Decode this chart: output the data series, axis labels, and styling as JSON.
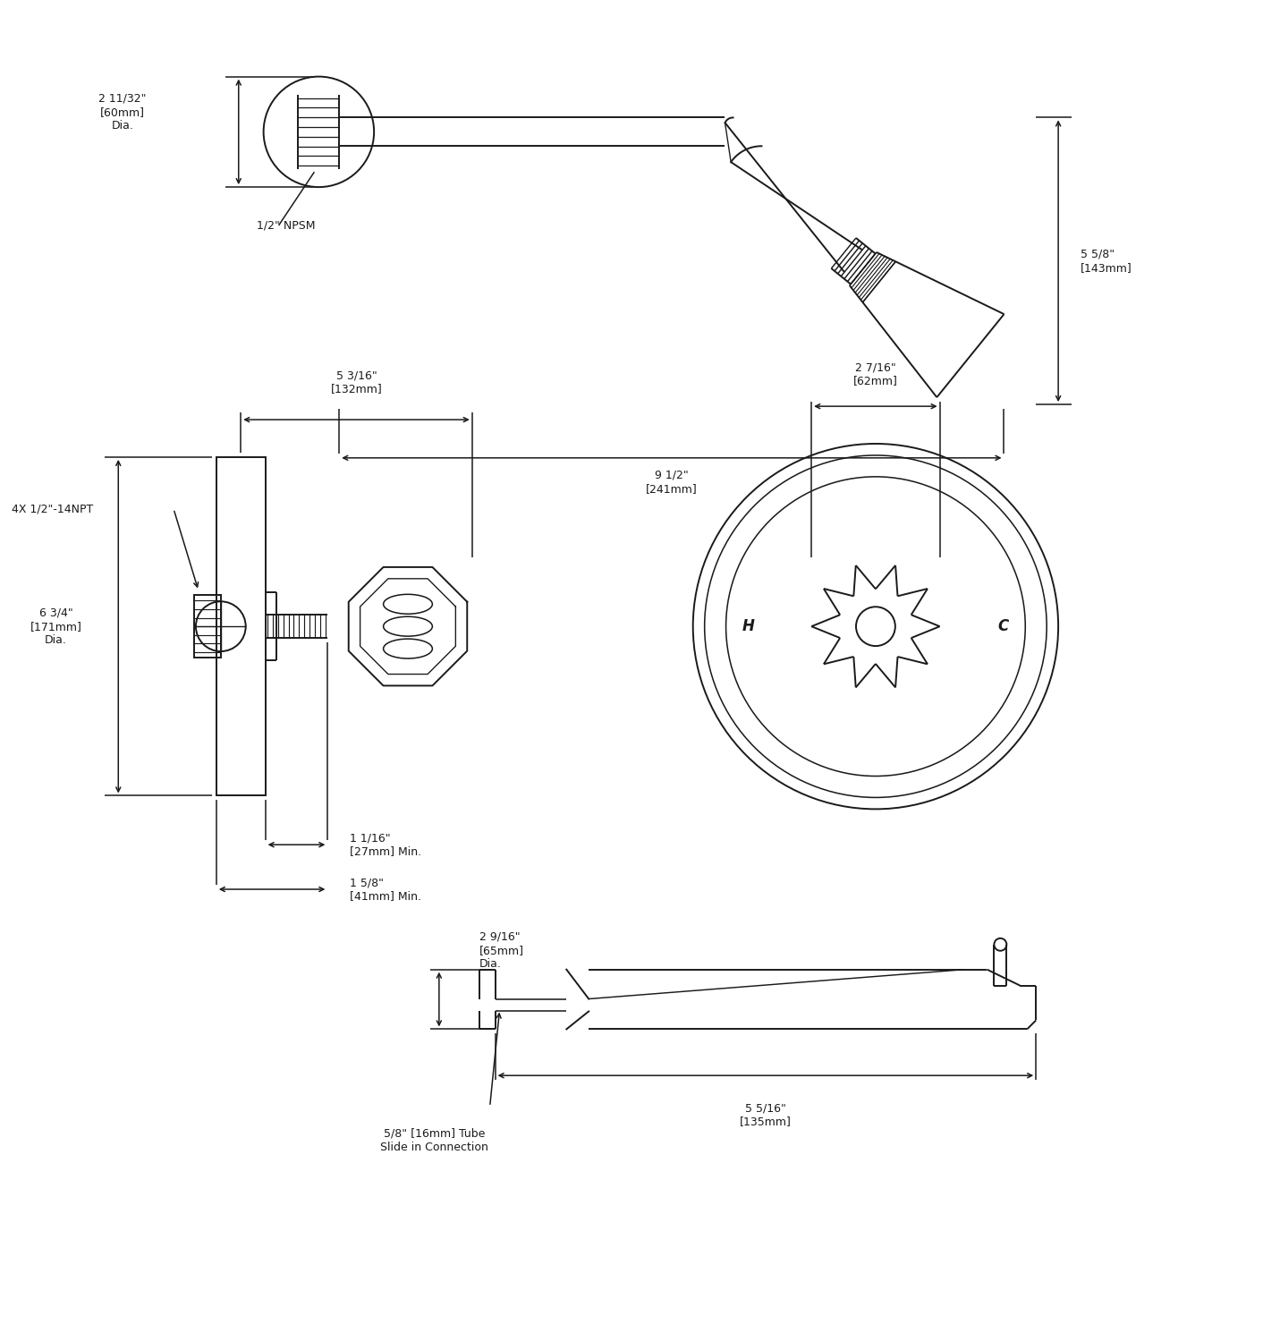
{
  "bg_color": "#ffffff",
  "line_color": "#1a1a1a",
  "lw": 1.4,
  "dim_lw": 1.1,
  "annotations": {
    "shower_arm_dia_label": "2 11/32\"\n[60mm]\nDia.",
    "npsm_label": "1/2\" NPSM",
    "height_label": "5 5/8\"\n[143mm]",
    "width_label": "9 1/2\"\n[241mm]",
    "body_width_label": "5 3/16\"\n[132mm]",
    "knob_dia_label": "2 7/16\"\n[62mm]",
    "body_dia_label": "6 3/4\"\n[171mm]\nDia.",
    "npt_label": "4X 1/2\"-14NPT",
    "min1_label": "1 1/16\"\n[27mm] Min.",
    "min2_label": "1 5/8\"\n[41mm] Min.",
    "tub_dia_label": "2 9/16\"\n[65mm]\nDia.",
    "tub_len_label": "5 5/16\"\n[135mm]",
    "tube_label": "5/8\" [16mm] Tube\nSlide in Connection"
  }
}
